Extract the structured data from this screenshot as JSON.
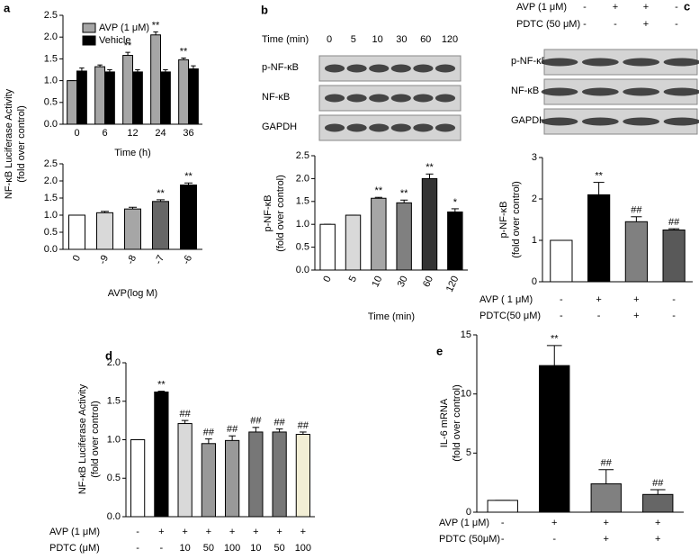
{
  "chart_data": [
    {
      "type": "bar",
      "panel": "a",
      "ylabel": [
        "NF-κB Luciferase Activity",
        "(fold over control)"
      ],
      "xlabel": "Time (h)",
      "categories": [
        "0",
        "6",
        "12",
        "24",
        "36"
      ],
      "series": [
        {
          "name": "AVP (1 μM)",
          "color": "#a6a6a6",
          "values": [
            1.0,
            1.32,
            1.58,
            2.05,
            1.48
          ],
          "errors": [
            0.0,
            0.04,
            0.07,
            0.07,
            0.04
          ],
          "labels": [
            null,
            null,
            "**",
            "**",
            "**"
          ]
        },
        {
          "name": "Vehicle",
          "color": "#000000",
          "values": [
            1.22,
            1.2,
            1.2,
            1.2,
            1.27
          ],
          "errors": [
            0.07,
            0.05,
            0.05,
            0.05,
            0.07
          ]
        }
      ],
      "legend": "upper left",
      "ylim": [
        0,
        2.5
      ],
      "yticks": [
        {
          "value": 0,
          "label": "0.0"
        },
        0.5,
        {
          "value": 1,
          "label": "1.0"
        },
        1.5,
        {
          "value": 2,
          "label": "2.0"
        },
        2.5
      ]
    },
    {
      "type": "bar",
      "xlabel": "AVP(log M)",
      "categories": [
        "0",
        "-9",
        "-8",
        "-7",
        "-6"
      ],
      "values": [
        1.0,
        1.07,
        1.18,
        1.4,
        1.88
      ],
      "errors": [
        0.0,
        0.04,
        0.05,
        0.05,
        0.06
      ],
      "colors": [
        "#ffffff",
        "#d9d9d9",
        "#a6a6a6",
        "#666666",
        "#000000"
      ],
      "labels": [
        null,
        null,
        null,
        "**",
        "**"
      ],
      "ylim": [
        0,
        2.5
      ],
      "yticks": [
        {
          "value": 0,
          "label": "0.0"
        },
        0.5,
        {
          "value": 1,
          "label": "1.0"
        },
        1.5,
        {
          "value": 2,
          "label": "2.0"
        },
        2.5
      ]
    },
    {
      "type": "bar",
      "panel": "b",
      "blot": {
        "header": [
          {
            "label": "Time (min)",
            "values": [
              "0",
              "5",
              "10",
              "30",
              "60",
              "120"
            ]
          }
        ],
        "rows": [
          "p-NF-κB",
          "NF-κB",
          "GAPDH"
        ]
      },
      "ylabel": [
        "p-NF-κB",
        "(fold over control)"
      ],
      "xlabel": "Time (min)",
      "categories": [
        "0",
        "5",
        "10",
        "30",
        "60",
        "120"
      ],
      "values": [
        1.0,
        1.2,
        1.57,
        1.47,
        2.0,
        1.27
      ],
      "errors": [
        0.0,
        0.0,
        0.02,
        0.06,
        0.1,
        0.07
      ],
      "colors": [
        "#ffffff",
        "#d9d9d9",
        "#a6a6a6",
        "#808080",
        "#333333",
        "#000000"
      ],
      "labels": [
        null,
        null,
        "**",
        "**",
        "**",
        "*"
      ],
      "ylim": [
        0,
        2.5
      ],
      "yticks": [
        {
          "value": 0,
          "label": "0.0"
        },
        0.5,
        {
          "value": 1,
          "label": "1.0"
        },
        1.5,
        {
          "value": 2,
          "label": "2.0"
        },
        2.5
      ]
    },
    {
      "type": "bar",
      "panel": "c",
      "blot": {
        "header": [
          {
            "label": "AVP (1 μM)",
            "values": [
              "-",
              "+",
              "+",
              "-"
            ]
          },
          {
            "label": "PDTC (50 μM)",
            "values": [
              "-",
              "-",
              "+",
              "-"
            ]
          }
        ],
        "rows": [
          "p-NF-κB",
          "NF-κB",
          "GAPDH"
        ]
      },
      "ylabel": [
        "p-NF-κB",
        "(fold over control)"
      ],
      "conditions": [
        {
          "label": "AVP ( 1 μM)",
          "values": [
            "-",
            "+",
            "+",
            "-"
          ]
        },
        {
          "label": "PDTC(50 μM)",
          "values": [
            "-",
            "-",
            "+",
            "-"
          ]
        }
      ],
      "values": [
        1.0,
        2.1,
        1.45,
        1.25
      ],
      "errors": [
        0.0,
        0.3,
        0.12,
        0.03
      ],
      "colors": [
        "#ffffff",
        "#000000",
        "#808080",
        "#595959"
      ],
      "labels": [
        null,
        "**",
        "##",
        "##"
      ],
      "ylim": [
        0,
        3
      ],
      "yticks": [
        0,
        1,
        2,
        3
      ]
    },
    {
      "type": "bar",
      "panel": "d",
      "ylabel": [
        "NF-κB Luciferase Activity",
        "(fold over control)"
      ],
      "conditions": [
        {
          "label": "AVP (1 μM)",
          "values": [
            "-",
            "+",
            "+",
            "+",
            "+",
            "+",
            "+",
            "+"
          ]
        },
        {
          "label": "PDTC (μM)",
          "values": [
            "-",
            "-",
            "10",
            "50",
            "100",
            "10",
            "50",
            "100"
          ]
        }
      ],
      "values": [
        1.0,
        1.62,
        1.21,
        0.95,
        0.99,
        1.1,
        1.1,
        1.07
      ],
      "errors": [
        0.0,
        0.01,
        0.04,
        0.06,
        0.06,
        0.06,
        0.04,
        0.03
      ],
      "colors": [
        "#ffffff",
        "#000000",
        "#d9d9d9",
        "#999999",
        "#999999",
        "#777777",
        "#777777",
        "#f2eed5"
      ],
      "labels": [
        null,
        "**",
        "##",
        "##",
        "##",
        "##",
        "##",
        "##"
      ],
      "ylim": [
        0,
        2
      ],
      "yticks": [
        {
          "value": 0,
          "label": "0.0"
        },
        0.5,
        {
          "value": 1,
          "label": "1.0"
        },
        1.5,
        {
          "value": 2,
          "label": "2.0"
        }
      ]
    },
    {
      "type": "bar",
      "panel": "e",
      "ylabel": [
        "IL-6 mRNA",
        "(fold over control)"
      ],
      "conditions": [
        {
          "label": "AVP (1 μM)",
          "values": [
            "-",
            "+",
            "+",
            "+"
          ]
        },
        {
          "label": "PDTC (50μM)",
          "values": [
            "-",
            "-",
            "+",
            "+"
          ]
        }
      ],
      "values": [
        1.0,
        12.4,
        2.4,
        1.5
      ],
      "errors": [
        0.0,
        1.7,
        1.2,
        0.4
      ],
      "colors": [
        "#ffffff",
        "#000000",
        "#808080",
        "#666666"
      ],
      "labels": [
        null,
        "**",
        "##",
        "##"
      ],
      "ylim": [
        0,
        15
      ],
      "yticks": [
        0,
        5,
        10,
        15
      ]
    }
  ]
}
